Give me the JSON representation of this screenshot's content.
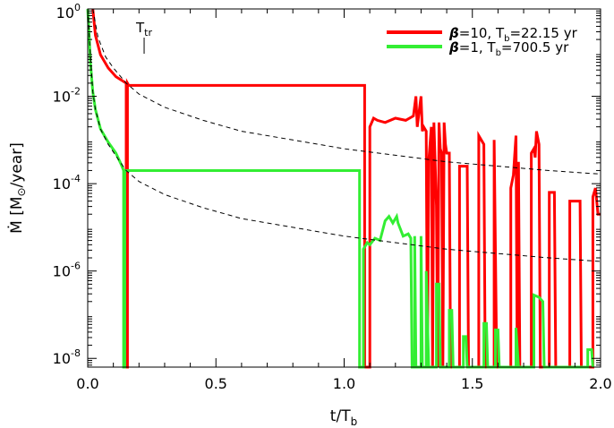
{
  "chart_data": {
    "type": "line",
    "xlabel": "t/T",
    "xlabel_sub": "b",
    "ylabel_prefix": "Ṁ [M",
    "ylabel_sun": "⊙",
    "ylabel_suffix": "/year]",
    "xlim": [
      0.0,
      2.0
    ],
    "ylim_log10": [
      -8.2,
      0.0
    ],
    "y_scale": "log",
    "x_ticks": [
      {
        "value": 0.0,
        "label": "0.0"
      },
      {
        "value": 0.5,
        "label": "0.5"
      },
      {
        "value": 1.0,
        "label": "1.0"
      },
      {
        "value": 1.5,
        "label": "1.5"
      },
      {
        "value": 2.0,
        "label": "2.0"
      }
    ],
    "y_ticks": [
      {
        "value": 0,
        "base": "10",
        "exp": "0"
      },
      {
        "value": -2,
        "base": "10",
        "exp": "-2"
      },
      {
        "value": -4,
        "base": "10",
        "exp": "-4"
      },
      {
        "value": -6,
        "base": "10",
        "exp": "-6"
      },
      {
        "value": -8,
        "base": "10",
        "exp": "-8"
      }
    ],
    "grid": false,
    "legend_position": "top-right",
    "annotation": {
      "text": "T",
      "sub": "tr",
      "x": 0.22
    },
    "series": [
      {
        "name": "β=10, T_b=22.15 yr",
        "legend": {
          "beta": "β",
          "beta_value": "=10,  T",
          "tb_sub": "b",
          "tb_value": "=22.15 yr"
        },
        "color": "#ff0000",
        "points": [
          [
            0.02,
            0.0
          ],
          [
            0.03,
            -0.6
          ],
          [
            0.05,
            -1.05
          ],
          [
            0.08,
            -1.35
          ],
          [
            0.11,
            -1.55
          ],
          [
            0.15,
            -1.7
          ],
          [
            0.15,
            -8.2
          ],
          [
            0.155,
            -8.2
          ],
          [
            0.155,
            -1.7
          ],
          [
            0.16,
            -1.75
          ],
          [
            1.08,
            -1.75
          ],
          [
            1.08,
            -8.2
          ],
          [
            1.1,
            -8.2
          ],
          [
            1.1,
            -2.7
          ],
          [
            1.115,
            -2.5
          ],
          [
            1.13,
            -2.55
          ],
          [
            1.16,
            -2.6
          ],
          [
            1.2,
            -2.5
          ],
          [
            1.24,
            -2.55
          ],
          [
            1.27,
            -2.45
          ],
          [
            1.28,
            -2.0
          ],
          [
            1.285,
            -2.7
          ],
          [
            1.3,
            -2.0
          ],
          [
            1.305,
            -2.8
          ],
          [
            1.31,
            -2.7
          ],
          [
            1.32,
            -2.8
          ],
          [
            1.325,
            -8.2
          ],
          [
            1.33,
            -3.5
          ],
          [
            1.34,
            -2.7
          ],
          [
            1.345,
            -8.2
          ],
          [
            1.35,
            -2.6
          ],
          [
            1.36,
            -4.5
          ],
          [
            1.365,
            -8.2
          ],
          [
            1.37,
            -2.6
          ],
          [
            1.375,
            -3.2
          ],
          [
            1.38,
            -3.3
          ],
          [
            1.385,
            -8.2
          ],
          [
            1.39,
            -2.6
          ],
          [
            1.395,
            -3.1
          ],
          [
            1.4,
            -3.3
          ],
          [
            1.41,
            -3.3
          ],
          [
            1.415,
            -8.2
          ],
          [
            1.45,
            -8.2
          ],
          [
            1.45,
            -3.6
          ],
          [
            1.48,
            -3.6
          ],
          [
            1.485,
            -8.2
          ],
          [
            1.525,
            -8.2
          ],
          [
            1.525,
            -2.9
          ],
          [
            1.545,
            -3.1
          ],
          [
            1.55,
            -8.2
          ],
          [
            1.585,
            -8.2
          ],
          [
            1.585,
            -3.0
          ],
          [
            1.595,
            -8.2
          ],
          [
            1.65,
            -8.2
          ],
          [
            1.65,
            -4.1
          ],
          [
            1.66,
            -3.8
          ],
          [
            1.67,
            -2.9
          ],
          [
            1.675,
            -8.2
          ],
          [
            1.68,
            -3.5
          ],
          [
            1.685,
            -8.2
          ],
          [
            1.73,
            -8.2
          ],
          [
            1.73,
            -3.3
          ],
          [
            1.74,
            -3.2
          ],
          [
            1.745,
            -3.4
          ],
          [
            1.75,
            -2.8
          ],
          [
            1.76,
            -3.1
          ],
          [
            1.765,
            -8.2
          ],
          [
            1.795,
            -8.2
          ],
          [
            1.8,
            -8.2
          ],
          [
            1.8,
            -4.2
          ],
          [
            1.82,
            -4.2
          ],
          [
            1.825,
            -8.2
          ],
          [
            1.88,
            -8.2
          ],
          [
            1.88,
            -4.4
          ],
          [
            1.92,
            -4.4
          ],
          [
            1.925,
            -8.2
          ],
          [
            1.97,
            -8.2
          ],
          [
            1.97,
            -4.3
          ],
          [
            1.98,
            -4.1
          ],
          [
            1.99,
            -4.7
          ],
          [
            2.0,
            -4.7
          ]
        ]
      },
      {
        "name": "β=1, T_b=700.5 yr",
        "legend": {
          "beta": "β",
          "beta_value": "=1,   T",
          "tb_sub": "b",
          "tb_value": "=700.5 yr"
        },
        "color": "#33ee33",
        "points": [
          [
            0.0,
            0.0
          ],
          [
            0.005,
            -0.5
          ],
          [
            0.01,
            -1.2
          ],
          [
            0.02,
            -1.9
          ],
          [
            0.03,
            -2.3
          ],
          [
            0.05,
            -2.75
          ],
          [
            0.08,
            -3.05
          ],
          [
            0.11,
            -3.3
          ],
          [
            0.13,
            -3.55
          ],
          [
            0.14,
            -3.7
          ],
          [
            0.14,
            -8.2
          ],
          [
            0.145,
            -8.2
          ],
          [
            0.145,
            -3.7
          ],
          [
            1.06,
            -3.7
          ],
          [
            1.06,
            -8.2
          ],
          [
            1.075,
            -8.2
          ],
          [
            1.075,
            -5.5
          ],
          [
            1.09,
            -5.35
          ],
          [
            1.1,
            -5.4
          ],
          [
            1.12,
            -5.25
          ],
          [
            1.14,
            -5.3
          ],
          [
            1.16,
            -4.85
          ],
          [
            1.175,
            -4.75
          ],
          [
            1.19,
            -4.9
          ],
          [
            1.205,
            -4.75
          ],
          [
            1.21,
            -4.9
          ],
          [
            1.23,
            -5.2
          ],
          [
            1.25,
            -5.15
          ],
          [
            1.26,
            -5.25
          ],
          [
            1.265,
            -8.2
          ],
          [
            1.275,
            -8.2
          ],
          [
            1.275,
            -5.2
          ],
          [
            1.28,
            -8.2
          ],
          [
            1.3,
            -8.2
          ],
          [
            1.3,
            -5.2
          ],
          [
            1.305,
            -8.2
          ],
          [
            1.32,
            -8.2
          ],
          [
            1.32,
            -6.0
          ],
          [
            1.33,
            -8.2
          ],
          [
            1.36,
            -8.2
          ],
          [
            1.36,
            -6.3
          ],
          [
            1.37,
            -6.3
          ],
          [
            1.375,
            -8.2
          ],
          [
            1.41,
            -8.2
          ],
          [
            1.41,
            -6.9
          ],
          [
            1.42,
            -6.9
          ],
          [
            1.425,
            -8.2
          ],
          [
            1.465,
            -8.2
          ],
          [
            1.465,
            -7.5
          ],
          [
            1.475,
            -7.5
          ],
          [
            1.48,
            -8.2
          ],
          [
            1.545,
            -8.2
          ],
          [
            1.545,
            -7.2
          ],
          [
            1.555,
            -7.2
          ],
          [
            1.56,
            -8.2
          ],
          [
            1.59,
            -8.2
          ],
          [
            1.59,
            -7.35
          ],
          [
            1.6,
            -7.35
          ],
          [
            1.605,
            -8.2
          ],
          [
            1.67,
            -8.2
          ],
          [
            1.67,
            -7.3
          ],
          [
            1.68,
            -8.2
          ],
          [
            1.74,
            -8.2
          ],
          [
            1.74,
            -6.55
          ],
          [
            1.76,
            -6.6
          ],
          [
            1.775,
            -6.7
          ],
          [
            1.78,
            -8.2
          ],
          [
            1.95,
            -8.2
          ],
          [
            1.95,
            -7.8
          ],
          [
            1.965,
            -7.8
          ],
          [
            1.97,
            -8.2
          ]
        ]
      },
      {
        "name": "",
        "style": "dashed",
        "color": "#000000",
        "points": [
          [
            0.02,
            0.0
          ],
          [
            0.04,
            -0.65
          ],
          [
            0.07,
            -1.1
          ],
          [
            0.1,
            -1.35
          ],
          [
            0.15,
            -1.7
          ],
          [
            0.2,
            -1.95
          ],
          [
            0.3,
            -2.25
          ],
          [
            0.45,
            -2.55
          ],
          [
            0.6,
            -2.8
          ],
          [
            0.8,
            -3.0
          ],
          [
            1.0,
            -3.2
          ],
          [
            1.2,
            -3.35
          ],
          [
            1.4,
            -3.5
          ],
          [
            1.6,
            -3.6
          ],
          [
            1.8,
            -3.7
          ],
          [
            2.0,
            -3.78
          ]
        ]
      },
      {
        "name": "",
        "style": "dashed",
        "color": "#000000",
        "points": [
          [
            0.0,
            0.0
          ],
          [
            0.01,
            -1.0
          ],
          [
            0.02,
            -1.9
          ],
          [
            0.03,
            -2.3
          ],
          [
            0.05,
            -2.75
          ],
          [
            0.08,
            -3.1
          ],
          [
            0.12,
            -3.45
          ],
          [
            0.15,
            -3.7
          ],
          [
            0.2,
            -3.95
          ],
          [
            0.3,
            -4.25
          ],
          [
            0.45,
            -4.55
          ],
          [
            0.6,
            -4.8
          ],
          [
            0.8,
            -5.0
          ],
          [
            1.0,
            -5.2
          ],
          [
            1.2,
            -5.35
          ],
          [
            1.4,
            -5.5
          ],
          [
            1.6,
            -5.6
          ],
          [
            1.8,
            -5.7
          ],
          [
            2.0,
            -5.78
          ]
        ]
      }
    ]
  }
}
